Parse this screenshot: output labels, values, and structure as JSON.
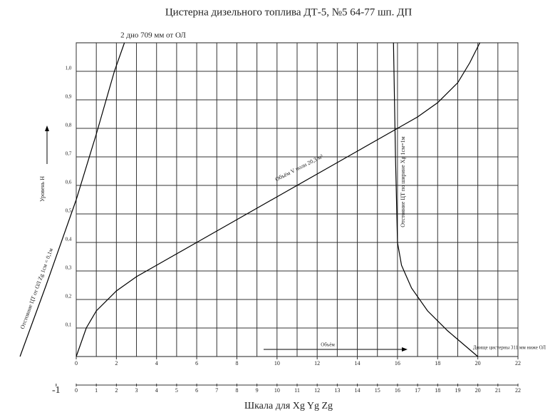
{
  "chart_data": {
    "type": "line",
    "title": "Цистерна дизельного топлива ДТ-5, №5   64-77 шп. ДП",
    "subtitle": "2 дно 709 мм от ОЛ",
    "xlim": [
      0,
      22
    ],
    "ylim": [
      0,
      1.1
    ],
    "xticks": [
      0,
      2,
      4,
      6,
      8,
      10,
      12,
      14,
      16,
      18,
      20,
      22
    ],
    "x2ticks": [
      -1,
      0,
      1,
      2,
      3,
      4,
      5,
      6,
      7,
      8,
      9,
      10,
      11,
      12,
      13,
      14,
      15,
      16,
      17,
      18,
      19,
      20,
      21,
      22
    ],
    "yticks": [
      {
        "value": 0.1,
        "label": "0,1"
      },
      {
        "value": 0.2,
        "label": "0,2"
      },
      {
        "value": 0.3,
        "label": "0,3"
      },
      {
        "value": 0.4,
        "label": "0,4"
      },
      {
        "value": 0.5,
        "label": "0,5"
      },
      {
        "value": 0.6,
        "label": "0,6"
      },
      {
        "value": 0.7,
        "label": "0,7"
      },
      {
        "value": 0.8,
        "label": "0,8"
      },
      {
        "value": 0.9,
        "label": "0,9"
      },
      {
        "value": 1.0,
        "label": "1,0"
      }
    ],
    "grid": true,
    "ylabel": "Уровень Н",
    "xlabel_inner": "Объём",
    "xlabel": "Шкала для Xg Yg Zg",
    "annotation": "Днище цистерны 311 мм ниже ОЛ",
    "series": [
      {
        "name": "Отстояние ЦТ от ОЛ Zg 1см = 0,1м",
        "color": "#000000",
        "x": [
          -2.8,
          -1.5,
          0,
          1,
          1.9,
          2.4
        ],
        "values": [
          0,
          0.25,
          0.55,
          0.78,
          1.0,
          1.1
        ]
      },
      {
        "name": "Объём V полн 20,3 м³",
        "color": "#000000",
        "x": [
          0,
          0.5,
          1,
          2,
          3,
          4,
          6,
          8,
          10,
          12,
          14,
          16,
          17,
          18,
          19,
          19.6,
          20.1
        ],
        "values": [
          0,
          0.1,
          0.16,
          0.23,
          0.28,
          0.32,
          0.4,
          0.48,
          0.56,
          0.64,
          0.72,
          0.8,
          0.84,
          0.89,
          0.96,
          1.03,
          1.1
        ]
      },
      {
        "name": "Отстояние ЦТ по ширине Xg 1см=1м",
        "color": "#000000",
        "x": [
          15.8,
          15.85,
          15.9,
          16.0,
          16.2,
          16.7,
          17.5,
          18.5,
          20.0
        ],
        "values": [
          1.1,
          0.9,
          0.7,
          0.4,
          0.32,
          0.24,
          0.16,
          0.09,
          0
        ]
      }
    ]
  }
}
